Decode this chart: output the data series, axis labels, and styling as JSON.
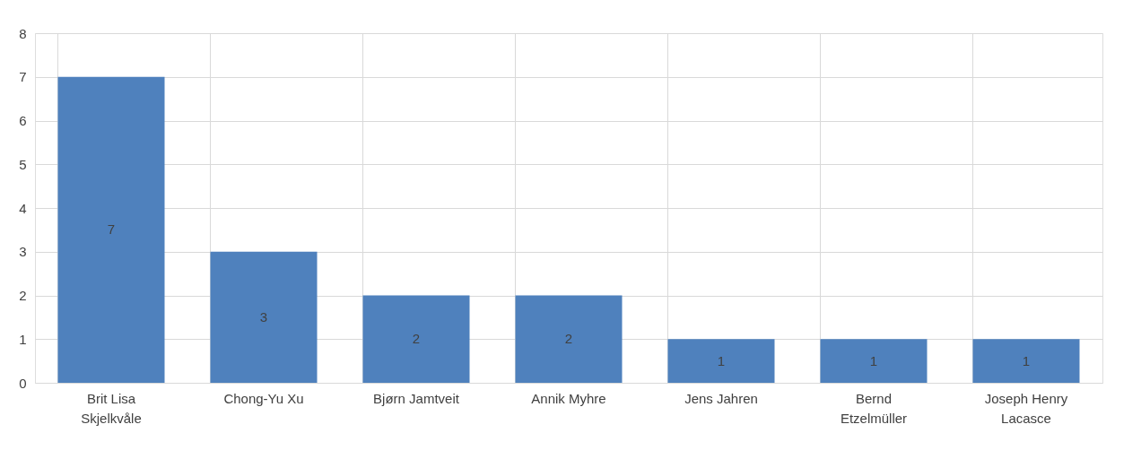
{
  "chart_data": {
    "type": "bar",
    "categories": [
      "Brit Lisa Skjelkvåle",
      "Chong-Yu Xu",
      "Bjørn Jamtveit",
      "Annik Myhre",
      "Jens Jahren",
      "Bernd Etzelmüller",
      "Joseph Henry Lacasce"
    ],
    "values": [
      7,
      3,
      2,
      2,
      1,
      1,
      1
    ],
    "color": "#4f81bd",
    "ylim": [
      0,
      8
    ],
    "yticks": [
      0,
      1,
      2,
      3,
      4,
      5,
      6,
      7,
      8
    ],
    "grid": true,
    "data_labels": true
  }
}
